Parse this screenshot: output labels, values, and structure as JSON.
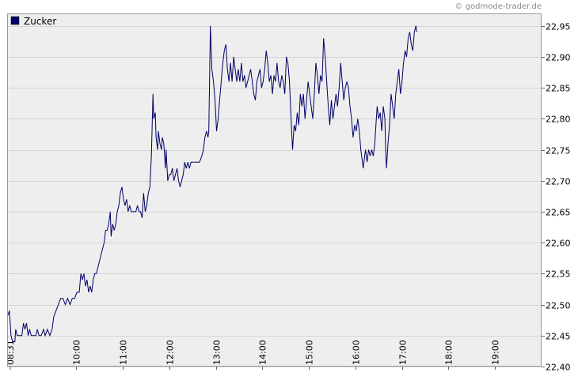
{
  "credit": "© godmode-trader.de",
  "chart_data": {
    "type": "line",
    "title": "",
    "legend": [
      {
        "label": "Zucker",
        "color": "#000066"
      }
    ],
    "xlabel": "",
    "ylabel": "",
    "ylim": [
      22.4,
      22.97
    ],
    "yticks": [
      22.4,
      22.45,
      22.5,
      22.55,
      22.6,
      22.65,
      22.7,
      22.75,
      22.8,
      22.85,
      22.9,
      22.95
    ],
    "ytick_labels": [
      "22,40",
      "22,45",
      "22,50",
      "22,55",
      "22,60",
      "22,65",
      "22,70",
      "22,75",
      "22,80",
      "22,85",
      "22,90",
      "22,95"
    ],
    "x_start_label": "08:31",
    "xlim_minutes": [
      511,
      1200
    ],
    "xticks": [
      {
        "label": "10:00",
        "minute": 600
      },
      {
        "label": "11:00",
        "minute": 660
      },
      {
        "label": "12:00",
        "minute": 720
      },
      {
        "label": "13:00",
        "minute": 780
      },
      {
        "label": "14:00",
        "minute": 840
      },
      {
        "label": "15:00",
        "minute": 900
      },
      {
        "label": "16:00",
        "minute": 960
      },
      {
        "label": "17:00",
        "minute": 1020
      },
      {
        "label": "18:00",
        "minute": 1080
      },
      {
        "label": "19:00",
        "minute": 1140
      }
    ],
    "series": [
      {
        "name": "Zucker",
        "color": "#000066",
        "points": [
          [
            511,
            22.48
          ],
          [
            514,
            22.49
          ],
          [
            516,
            22.45
          ],
          [
            518,
            22.44
          ],
          [
            521,
            22.44
          ],
          [
            522,
            22.46
          ],
          [
            524,
            22.45
          ],
          [
            527,
            22.45
          ],
          [
            530,
            22.45
          ],
          [
            532,
            22.47
          ],
          [
            534,
            22.46
          ],
          [
            536,
            22.47
          ],
          [
            538,
            22.45
          ],
          [
            540,
            22.46
          ],
          [
            542,
            22.45
          ],
          [
            545,
            22.45
          ],
          [
            548,
            22.45
          ],
          [
            550,
            22.46
          ],
          [
            552,
            22.45
          ],
          [
            555,
            22.45
          ],
          [
            558,
            22.46
          ],
          [
            560,
            22.45
          ],
          [
            563,
            22.46
          ],
          [
            566,
            22.45
          ],
          [
            569,
            22.46
          ],
          [
            571,
            22.48
          ],
          [
            574,
            22.49
          ],
          [
            577,
            22.5
          ],
          [
            580,
            22.51
          ],
          [
            583,
            22.51
          ],
          [
            586,
            22.5
          ],
          [
            589,
            22.51
          ],
          [
            592,
            22.5
          ],
          [
            595,
            22.51
          ],
          [
            598,
            22.51
          ],
          [
            601,
            22.52
          ],
          [
            604,
            22.52
          ],
          [
            606,
            22.55
          ],
          [
            608,
            22.54
          ],
          [
            610,
            22.55
          ],
          [
            612,
            22.53
          ],
          [
            614,
            22.54
          ],
          [
            616,
            22.52
          ],
          [
            618,
            22.53
          ],
          [
            620,
            22.52
          ],
          [
            622,
            22.54
          ],
          [
            624,
            22.55
          ],
          [
            626,
            22.55
          ],
          [
            628,
            22.56
          ],
          [
            630,
            22.57
          ],
          [
            632,
            22.58
          ],
          [
            634,
            22.59
          ],
          [
            636,
            22.6
          ],
          [
            638,
            22.62
          ],
          [
            640,
            22.62
          ],
          [
            642,
            22.63
          ],
          [
            644,
            22.65
          ],
          [
            645,
            22.61
          ],
          [
            647,
            22.63
          ],
          [
            649,
            22.62
          ],
          [
            651,
            22.63
          ],
          [
            653,
            22.65
          ],
          [
            655,
            22.66
          ],
          [
            657,
            22.68
          ],
          [
            659,
            22.69
          ],
          [
            661,
            22.67
          ],
          [
            663,
            22.66
          ],
          [
            665,
            22.67
          ],
          [
            667,
            22.65
          ],
          [
            669,
            22.66
          ],
          [
            671,
            22.65
          ],
          [
            673,
            22.65
          ],
          [
            675,
            22.65
          ],
          [
            677,
            22.65
          ],
          [
            679,
            22.66
          ],
          [
            681,
            22.65
          ],
          [
            683,
            22.65
          ],
          [
            685,
            22.64
          ],
          [
            687,
            22.68
          ],
          [
            689,
            22.65
          ],
          [
            691,
            22.66
          ],
          [
            693,
            22.68
          ],
          [
            695,
            22.69
          ],
          [
            697,
            22.74
          ],
          [
            699,
            22.84
          ],
          [
            700,
            22.8
          ],
          [
            702,
            22.81
          ],
          [
            703,
            22.77
          ],
          [
            705,
            22.75
          ],
          [
            706,
            22.78
          ],
          [
            708,
            22.76
          ],
          [
            710,
            22.75
          ],
          [
            711,
            22.77
          ],
          [
            713,
            22.76
          ],
          [
            715,
            22.72
          ],
          [
            716,
            22.75
          ],
          [
            718,
            22.7
          ],
          [
            720,
            22.71
          ],
          [
            722,
            22.71
          ],
          [
            724,
            22.72
          ],
          [
            726,
            22.7
          ],
          [
            728,
            22.71
          ],
          [
            730,
            22.72
          ],
          [
            732,
            22.7
          ],
          [
            734,
            22.69
          ],
          [
            736,
            22.7
          ],
          [
            738,
            22.71
          ],
          [
            740,
            22.73
          ],
          [
            742,
            22.72
          ],
          [
            744,
            22.73
          ],
          [
            746,
            22.72
          ],
          [
            748,
            22.73
          ],
          [
            750,
            22.73
          ],
          [
            753,
            22.73
          ],
          [
            756,
            22.73
          ],
          [
            759,
            22.73
          ],
          [
            762,
            22.74
          ],
          [
            764,
            22.75
          ],
          [
            766,
            22.77
          ],
          [
            768,
            22.78
          ],
          [
            770,
            22.77
          ],
          [
            771,
            22.78
          ],
          [
            773,
            22.95
          ],
          [
            775,
            22.88
          ],
          [
            777,
            22.86
          ],
          [
            779,
            22.83
          ],
          [
            781,
            22.78
          ],
          [
            783,
            22.8
          ],
          [
            785,
            22.83
          ],
          [
            787,
            22.86
          ],
          [
            789,
            22.89
          ],
          [
            791,
            22.91
          ],
          [
            793,
            22.92
          ],
          [
            795,
            22.88
          ],
          [
            797,
            22.86
          ],
          [
            799,
            22.89
          ],
          [
            801,
            22.86
          ],
          [
            803,
            22.9
          ],
          [
            805,
            22.88
          ],
          [
            807,
            22.86
          ],
          [
            809,
            22.88
          ],
          [
            811,
            22.86
          ],
          [
            813,
            22.89
          ],
          [
            815,
            22.86
          ],
          [
            817,
            22.87
          ],
          [
            819,
            22.85
          ],
          [
            821,
            22.86
          ],
          [
            823,
            22.87
          ],
          [
            825,
            22.88
          ],
          [
            827,
            22.86
          ],
          [
            829,
            22.84
          ],
          [
            831,
            22.83
          ],
          [
            833,
            22.86
          ],
          [
            835,
            22.87
          ],
          [
            837,
            22.88
          ],
          [
            839,
            22.85
          ],
          [
            841,
            22.86
          ],
          [
            843,
            22.88
          ],
          [
            845,
            22.91
          ],
          [
            847,
            22.89
          ],
          [
            849,
            22.86
          ],
          [
            851,
            22.87
          ],
          [
            853,
            22.84
          ],
          [
            855,
            22.87
          ],
          [
            857,
            22.86
          ],
          [
            859,
            22.89
          ],
          [
            861,
            22.86
          ],
          [
            863,
            22.85
          ],
          [
            865,
            22.87
          ],
          [
            867,
            22.86
          ],
          [
            869,
            22.84
          ],
          [
            871,
            22.9
          ],
          [
            873,
            22.89
          ],
          [
            875,
            22.86
          ],
          [
            877,
            22.8
          ],
          [
            879,
            22.75
          ],
          [
            881,
            22.79
          ],
          [
            883,
            22.78
          ],
          [
            885,
            22.81
          ],
          [
            887,
            22.79
          ],
          [
            889,
            22.84
          ],
          [
            891,
            22.82
          ],
          [
            893,
            22.84
          ],
          [
            895,
            22.8
          ],
          [
            897,
            22.83
          ],
          [
            899,
            22.86
          ],
          [
            901,
            22.84
          ],
          [
            903,
            22.82
          ],
          [
            905,
            22.8
          ],
          [
            907,
            22.84
          ],
          [
            909,
            22.89
          ],
          [
            911,
            22.87
          ],
          [
            913,
            22.84
          ],
          [
            915,
            22.87
          ],
          [
            917,
            22.86
          ],
          [
            919,
            22.93
          ],
          [
            921,
            22.9
          ],
          [
            923,
            22.86
          ],
          [
            925,
            22.82
          ],
          [
            927,
            22.79
          ],
          [
            929,
            22.83
          ],
          [
            931,
            22.8
          ],
          [
            933,
            22.82
          ],
          [
            935,
            22.84
          ],
          [
            937,
            22.82
          ],
          [
            939,
            22.85
          ],
          [
            941,
            22.89
          ],
          [
            943,
            22.86
          ],
          [
            945,
            22.83
          ],
          [
            947,
            22.85
          ],
          [
            949,
            22.86
          ],
          [
            951,
            22.85
          ],
          [
            953,
            22.82
          ],
          [
            955,
            22.8
          ],
          [
            957,
            22.77
          ],
          [
            959,
            22.79
          ],
          [
            961,
            22.78
          ],
          [
            963,
            22.8
          ],
          [
            965,
            22.78
          ],
          [
            967,
            22.75
          ],
          [
            969,
            22.73
          ],
          [
            970,
            22.72
          ],
          [
            972,
            22.74
          ],
          [
            973,
            22.75
          ],
          [
            975,
            22.73
          ],
          [
            977,
            22.75
          ],
          [
            979,
            22.74
          ],
          [
            981,
            22.75
          ],
          [
            983,
            22.74
          ],
          [
            985,
            22.76
          ],
          [
            986,
            22.78
          ],
          [
            988,
            22.82
          ],
          [
            990,
            22.8
          ],
          [
            992,
            22.81
          ],
          [
            994,
            22.78
          ],
          [
            996,
            22.82
          ],
          [
            998,
            22.8
          ],
          [
            999,
            22.75
          ],
          [
            1000,
            22.72
          ],
          [
            1002,
            22.76
          ],
          [
            1004,
            22.79
          ],
          [
            1006,
            22.84
          ],
          [
            1008,
            22.82
          ],
          [
            1010,
            22.8
          ],
          [
            1012,
            22.84
          ],
          [
            1014,
            22.86
          ],
          [
            1016,
            22.88
          ],
          [
            1018,
            22.84
          ],
          [
            1020,
            22.86
          ],
          [
            1022,
            22.89
          ],
          [
            1024,
            22.91
          ],
          [
            1026,
            22.9
          ],
          [
            1028,
            22.93
          ],
          [
            1030,
            22.94
          ],
          [
            1032,
            22.92
          ],
          [
            1034,
            22.91
          ],
          [
            1036,
            22.94
          ],
          [
            1038,
            22.95
          ],
          [
            1039,
            22.94
          ]
        ]
      }
    ]
  }
}
